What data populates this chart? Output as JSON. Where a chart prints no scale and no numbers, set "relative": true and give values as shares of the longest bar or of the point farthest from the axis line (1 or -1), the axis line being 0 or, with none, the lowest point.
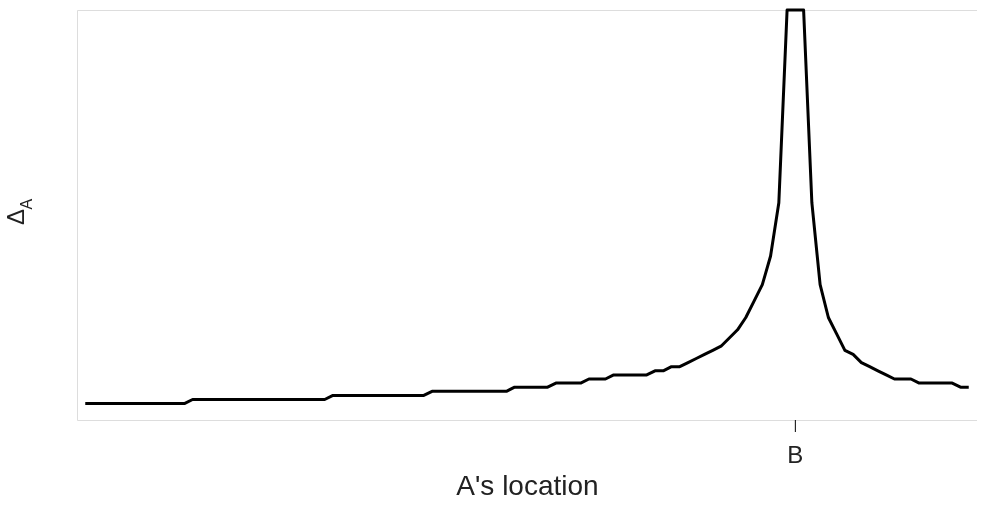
{
  "chart_data": {
    "type": "line",
    "xlabel": "A's location",
    "ylabel": "Δ$_{A}$",
    "relative": true,
    "grid": false,
    "legend": false,
    "marker": "none",
    "line_style": "solid",
    "annotations": [
      "B"
    ],
    "categories": [
      null,
      null,
      null,
      null,
      null,
      null,
      null,
      null,
      null,
      null,
      null,
      null,
      null,
      null,
      null,
      null,
      null,
      null,
      null,
      null,
      null,
      null,
      null,
      null,
      null,
      null,
      null,
      null,
      null,
      null,
      null,
      null,
      null,
      null,
      null,
      null,
      null,
      null,
      null,
      null,
      null,
      null,
      null,
      null,
      null,
      null,
      null,
      null,
      null,
      null,
      null,
      null,
      null,
      null,
      null,
      null,
      null,
      null,
      null,
      null,
      null,
      null,
      null,
      null,
      null,
      null,
      null,
      null,
      null,
      null,
      null,
      null,
      null,
      null,
      null,
      null,
      null,
      null,
      null,
      null,
      null,
      null,
      null,
      null,
      null,
      null,
      null,
      null,
      null,
      null,
      null,
      null,
      null,
      null,
      null,
      null,
      null,
      null,
      null,
      null,
      null,
      null,
      null,
      null,
      null,
      null,
      null,
      null
    ],
    "series": [
      {
        "color": "#000000",
        "values": [
          0.04,
          0.04,
          0.04,
          0.04,
          0.04,
          0.04,
          0.04,
          0.04,
          0.04,
          0.04,
          0.04,
          0.04,
          0.04,
          0.05,
          0.05,
          0.05,
          0.05,
          0.05,
          0.05,
          0.05,
          0.05,
          0.05,
          0.05,
          0.05,
          0.05,
          0.05,
          0.05,
          0.05,
          0.05,
          0.05,
          0.06,
          0.06,
          0.06,
          0.06,
          0.06,
          0.06,
          0.06,
          0.06,
          0.06,
          0.06,
          0.06,
          0.06,
          0.07,
          0.07,
          0.07,
          0.07,
          0.07,
          0.07,
          0.07,
          0.07,
          0.07,
          0.07,
          0.08,
          0.08,
          0.08,
          0.08,
          0.08,
          0.09,
          0.09,
          0.09,
          0.09,
          0.1,
          0.1,
          0.1,
          0.11,
          0.11,
          0.11,
          0.11,
          0.11,
          0.12,
          0.12,
          0.13,
          0.13,
          0.14,
          0.15,
          0.16,
          0.17,
          0.18,
          0.2,
          0.22,
          0.25,
          0.29,
          0.33,
          0.4,
          0.53,
          1.0,
          1.0,
          1.0,
          0.53,
          0.33,
          0.25,
          0.21,
          0.17,
          0.16,
          0.14,
          0.13,
          0.12,
          0.11,
          0.1,
          0.1,
          0.1,
          0.09,
          0.09,
          0.09,
          0.09,
          0.09,
          0.08,
          0.08
        ]
      }
    ]
  }
}
